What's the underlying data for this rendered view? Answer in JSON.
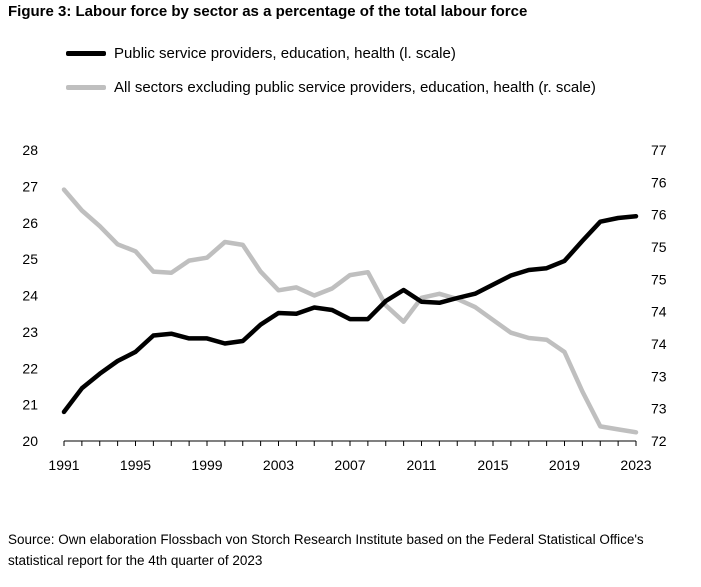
{
  "title": "Figure 3: Labour force by sector as a percentage of the total labour force",
  "source": "Source: Own elaboration Flossbach von Storch Research Institute based on the Federal Statistical Office's statistical report for the 4th quarter of 2023",
  "colors": {
    "left_series": "#000000",
    "right_series": "#bfbfbf",
    "axis": "#000000"
  },
  "chart_data": {
    "type": "line",
    "title": "Figure 3: Labour force by sector as a percentage of the total labour force",
    "x": [
      1991,
      1992,
      1993,
      1994,
      1995,
      1996,
      1997,
      1998,
      1999,
      2000,
      2001,
      2002,
      2003,
      2004,
      2005,
      2006,
      2007,
      2008,
      2009,
      2010,
      2011,
      2012,
      2013,
      2014,
      2015,
      2016,
      2017,
      2018,
      2019,
      2020,
      2021,
      2022,
      2023
    ],
    "x_tick_labels": [
      "1991",
      "1995",
      "1999",
      "2003",
      "2007",
      "2011",
      "2015",
      "2019",
      "2023"
    ],
    "x_ticks": [
      1991,
      1995,
      1999,
      2003,
      2007,
      2011,
      2015,
      2019,
      2023
    ],
    "xlim": [
      1991,
      2023
    ],
    "left_axis": {
      "ylim": [
        20,
        28
      ],
      "tick_labels": [
        "20",
        "21",
        "22",
        "23",
        "24",
        "25",
        "26",
        "27",
        "28"
      ]
    },
    "right_axis": {
      "ylim": [
        72,
        77
      ],
      "tick_labels": [
        "72",
        "73",
        "73",
        "74",
        "74",
        "75",
        "75",
        "76",
        "76",
        "77"
      ]
    },
    "series": [
      {
        "name": "Public service providers, education, health (l. scale)",
        "axis": "left",
        "color": "#000000",
        "values": [
          20.8,
          21.45,
          21.85,
          22.2,
          22.45,
          22.9,
          22.95,
          22.82,
          22.82,
          22.68,
          22.75,
          23.2,
          23.52,
          23.5,
          23.67,
          23.6,
          23.35,
          23.35,
          23.85,
          24.15,
          23.83,
          23.8,
          23.93,
          24.05,
          24.3,
          24.55,
          24.7,
          24.75,
          24.95,
          25.5,
          26.03,
          26.13,
          26.18
        ]
      },
      {
        "name": "All sectors excluding public service providers, education, health (r. scale)",
        "axis": "right",
        "color": "#bfbfbf",
        "values": [
          76.32,
          75.96,
          75.69,
          75.38,
          75.26,
          74.91,
          74.89,
          75.1,
          75.15,
          75.42,
          75.37,
          74.91,
          74.59,
          74.64,
          74.5,
          74.62,
          74.85,
          74.9,
          74.33,
          74.05,
          74.46,
          74.53,
          74.44,
          74.3,
          74.08,
          73.86,
          73.77,
          73.74,
          73.53,
          72.85,
          72.25,
          72.2,
          72.15
        ]
      }
    ]
  }
}
